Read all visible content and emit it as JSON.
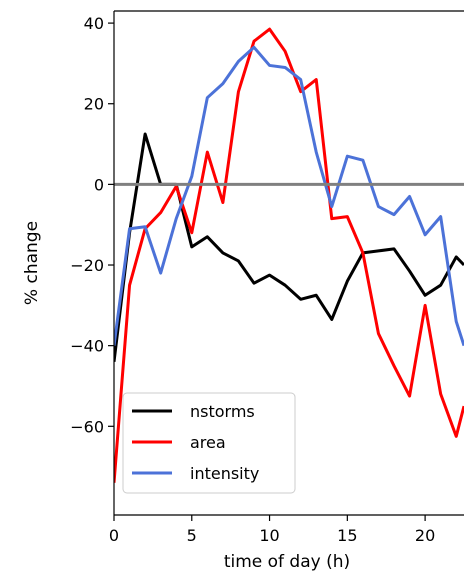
{
  "chart_data": {
    "type": "line",
    "title": "",
    "xlabel": "time of day (h)",
    "ylabel": "% change",
    "xlim": [
      0,
      22.5
    ],
    "ylim": [
      -82,
      43
    ],
    "x_ticks": [
      0,
      5,
      10,
      15,
      20
    ],
    "x_tick_labels": [
      "0",
      "5",
      "10",
      "15",
      "20"
    ],
    "y_ticks": [
      40,
      20,
      0,
      -20,
      -40,
      -60
    ],
    "y_tick_labels": [
      "40",
      "20",
      "0",
      "−20",
      "−40",
      "−60"
    ],
    "grid": false,
    "reference_line": {
      "y": 0,
      "color": "#808080"
    },
    "legend_position": "lower-left",
    "series": [
      {
        "name": "nstorms",
        "color": "#000000",
        "x": [
          0,
          1,
          2,
          3,
          4,
          5,
          6,
          7,
          8,
          9,
          10,
          11,
          12,
          13,
          14,
          15,
          16,
          17,
          18,
          19,
          20,
          21,
          22,
          22.5
        ],
        "y": [
          -44,
          -12,
          12.5,
          0,
          0,
          -15.5,
          -13,
          -17,
          -19,
          -24.5,
          -22.5,
          -25,
          -28.5,
          -27.5,
          -33.5,
          -24,
          -17,
          -16.5,
          -16,
          -21.5,
          -27.5,
          -25,
          -18,
          -20
        ]
      },
      {
        "name": "area",
        "color": "#ff0000",
        "x": [
          0,
          1,
          2,
          3,
          4,
          5,
          6,
          7,
          8,
          9,
          10,
          11,
          12,
          13,
          14,
          15,
          16,
          17,
          18,
          19,
          20,
          21,
          22,
          22.5
        ],
        "y": [
          -74,
          -25,
          -11,
          -7,
          -0.5,
          -12,
          8,
          -4.5,
          23,
          35.5,
          38.5,
          33,
          23,
          26,
          -8.5,
          -8,
          -17,
          -37,
          -45,
          -52.5,
          -30,
          -52,
          -62.5,
          -55
        ]
      },
      {
        "name": "intensity",
        "color": "#4c72d8",
        "x": [
          0,
          1,
          2,
          3,
          4,
          5,
          6,
          7,
          8,
          9,
          10,
          11,
          12,
          13,
          14,
          15,
          16,
          17,
          18,
          19,
          20,
          21,
          22,
          22.5
        ],
        "y": [
          -40,
          -11,
          -10.5,
          -22,
          -8.5,
          2,
          21.5,
          25,
          30.5,
          34,
          29.5,
          29,
          26,
          8,
          -5.5,
          7,
          6,
          -5.5,
          -7.5,
          -3,
          -12.5,
          -8,
          -34,
          -40
        ]
      }
    ]
  }
}
